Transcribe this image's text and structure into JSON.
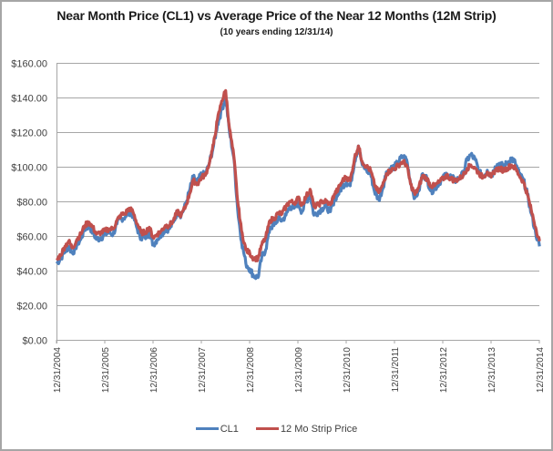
{
  "chart_data": {
    "type": "line",
    "title": "Near Month Price (CL1) vs Average Price of the Near 12 Months (12M Strip)",
    "subtitle": "(10 years ending 12/31/14)",
    "xlabel": "",
    "ylabel": "",
    "ylim": [
      0,
      160
    ],
    "xlim": [
      2004.997,
      2014.997
    ],
    "y_ticks": [
      0,
      20,
      40,
      60,
      80,
      100,
      120,
      140,
      160
    ],
    "y_tick_labels": [
      "$0.00",
      "$20.00",
      "$40.00",
      "$60.00",
      "$80.00",
      "$100.00",
      "$120.00",
      "$140.00",
      "$160.00"
    ],
    "x_ticks": [
      2004.997,
      2005.997,
      2006.997,
      2007.997,
      2008.997,
      2009.997,
      2010.997,
      2011.997,
      2012.997,
      2013.997,
      2014.997
    ],
    "x_tick_labels": [
      "12/31/2004",
      "12/31/2005",
      "12/31/2006",
      "12/31/2007",
      "12/31/2008",
      "12/31/2009",
      "12/31/2010",
      "12/31/2011",
      "12/31/2012",
      "12/31/2013",
      "12/31/2014"
    ],
    "grid": "horizontal",
    "legend": "bottom",
    "x": [
      2005.0,
      2005.08,
      2005.17,
      2005.25,
      2005.33,
      2005.42,
      2005.5,
      2005.58,
      2005.67,
      2005.75,
      2005.83,
      2005.92,
      2006.0,
      2006.08,
      2006.17,
      2006.25,
      2006.33,
      2006.42,
      2006.5,
      2006.58,
      2006.67,
      2006.75,
      2006.83,
      2006.92,
      2007.0,
      2007.08,
      2007.17,
      2007.25,
      2007.33,
      2007.42,
      2007.5,
      2007.58,
      2007.67,
      2007.75,
      2007.83,
      2007.92,
      2008.0,
      2008.08,
      2008.17,
      2008.25,
      2008.33,
      2008.42,
      2008.5,
      2008.58,
      2008.67,
      2008.75,
      2008.83,
      2008.92,
      2009.0,
      2009.08,
      2009.17,
      2009.25,
      2009.33,
      2009.42,
      2009.5,
      2009.58,
      2009.67,
      2009.75,
      2009.83,
      2009.92,
      2010.0,
      2010.08,
      2010.17,
      2010.25,
      2010.33,
      2010.42,
      2010.5,
      2010.58,
      2010.67,
      2010.75,
      2010.83,
      2010.92,
      2011.0,
      2011.08,
      2011.17,
      2011.25,
      2011.33,
      2011.42,
      2011.5,
      2011.58,
      2011.67,
      2011.75,
      2011.83,
      2011.92,
      2012.0,
      2012.08,
      2012.17,
      2012.25,
      2012.33,
      2012.42,
      2012.5,
      2012.58,
      2012.67,
      2012.75,
      2012.83,
      2012.92,
      2013.0,
      2013.08,
      2013.17,
      2013.25,
      2013.33,
      2013.42,
      2013.5,
      2013.58,
      2013.67,
      2013.75,
      2013.83,
      2013.92,
      2014.0,
      2014.08,
      2014.17,
      2014.25,
      2014.33,
      2014.42,
      2014.5,
      2014.58,
      2014.67,
      2014.75,
      2014.83,
      2014.92,
      2015.0
    ],
    "series": [
      {
        "name": "CL1",
        "color": "#4f81bd",
        "values": [
          44,
          47,
          51,
          54,
          50,
          55,
          58,
          64,
          66,
          62,
          58,
          59,
          61,
          62,
          61,
          67,
          70,
          71,
          74,
          72,
          64,
          59,
          59,
          62,
          55,
          58,
          61,
          64,
          64,
          68,
          74,
          72,
          78,
          86,
          94,
          91,
          96,
          95,
          103,
          112,
          124,
          133,
          140,
          120,
          105,
          75,
          57,
          44,
          41,
          37,
          36,
          48,
          52,
          65,
          66,
          70,
          69,
          72,
          77,
          76,
          79,
          74,
          80,
          84,
          72,
          74,
          76,
          77,
          74,
          81,
          84,
          89,
          91,
          89,
          103,
          112,
          101,
          98,
          96,
          86,
          81,
          87,
          97,
          99,
          100,
          103,
          106,
          104,
          91,
          82,
          86,
          96,
          93,
          86,
          87,
          91,
          93,
          96,
          94,
          92,
          93,
          96,
          104,
          107,
          104,
          97,
          94,
          98,
          94,
          100,
          102,
          100,
          102,
          105,
          102,
          96,
          92,
          84,
          73,
          62,
          54
        ]
      },
      {
        "name": "12 Mo Strip Price",
        "color": "#c0504d",
        "values": [
          46,
          49,
          54,
          57,
          53,
          58,
          61,
          66,
          68,
          65,
          61,
          62,
          63,
          64,
          64,
          69,
          72,
          73,
          76,
          74,
          67,
          62,
          62,
          65,
          59,
          61,
          63,
          66,
          66,
          69,
          74,
          72,
          77,
          84,
          92,
          90,
          94,
          95,
          103,
          113,
          127,
          138,
          144,
          122,
          106,
          80,
          63,
          52,
          50,
          47,
          47,
          55,
          59,
          69,
          70,
          73,
          73,
          77,
          80,
          79,
          82,
          78,
          83,
          87,
          77,
          78,
          80,
          80,
          78,
          84,
          87,
          92,
          94,
          92,
          105,
          112,
          103,
          100,
          98,
          90,
          85,
          89,
          96,
          98,
          99,
          101,
          103,
          101,
          90,
          84,
          88,
          95,
          93,
          89,
          89,
          91,
          93,
          95,
          93,
          92,
          93,
          95,
          99,
          101,
          99,
          96,
          94,
          97,
          94,
          98,
          99,
          98,
          99,
          101,
          99,
          95,
          91,
          84,
          75,
          65,
          57
        ]
      }
    ]
  }
}
